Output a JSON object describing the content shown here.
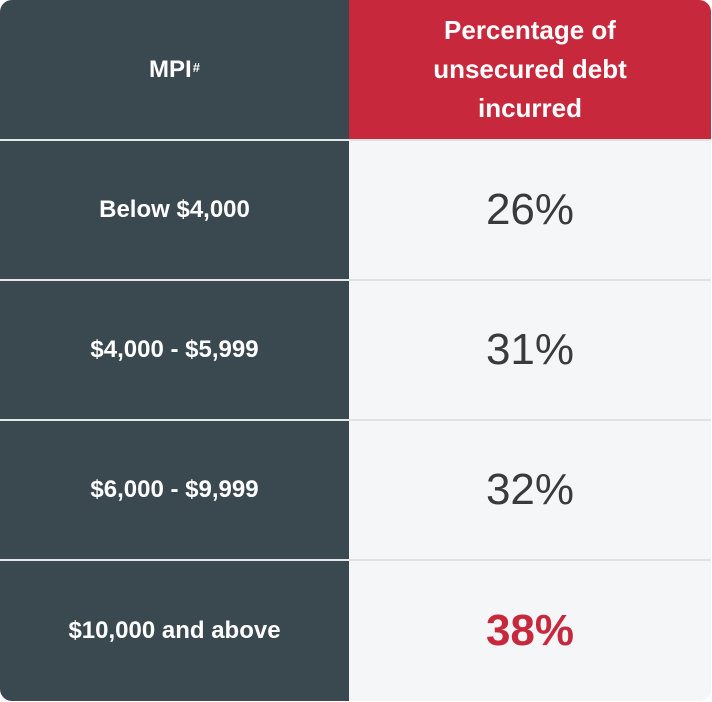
{
  "chart_data": {
    "type": "table",
    "columns": [
      {
        "label": "MPI",
        "superscript": "#"
      },
      {
        "label": "Percentage of unsecured debt incurred"
      }
    ],
    "rows": [
      {
        "mpi": "Below $4,000",
        "percentage": "26%",
        "highlight": false
      },
      {
        "mpi": "$4,000 - $5,999",
        "percentage": "31%",
        "highlight": false
      },
      {
        "mpi": "$6,000 - $9,999",
        "percentage": "32%",
        "highlight": false
      },
      {
        "mpi": "$10,000 and above",
        "percentage": "38%",
        "highlight": true
      }
    ]
  },
  "colors": {
    "header_left_bg": "#3a4850",
    "header_right_bg": "#c8283c",
    "left_col_bg": "#3a4850",
    "right_col_bg": "#f5f6f8",
    "value_text": "#3a3a3a",
    "highlight_text": "#c8283c"
  }
}
